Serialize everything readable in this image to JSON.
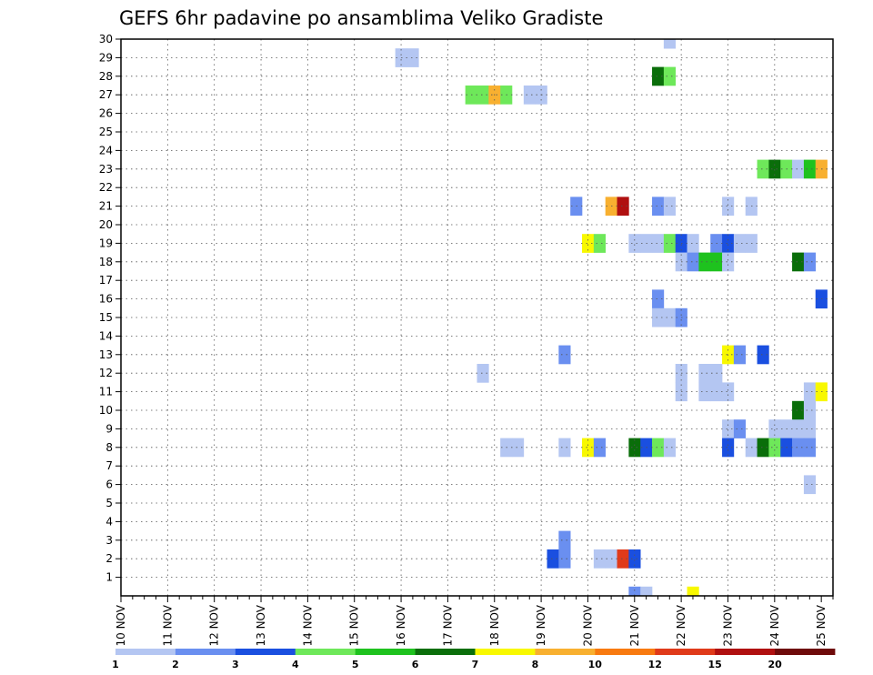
{
  "chart_data": {
    "type": "heatmap",
    "title": "GEFS 6hr padavine po ansamblima Veliko Gradiste",
    "x_tick_labels": [
      "10 NOV",
      "11 NOV",
      "12 NOV",
      "13 NOV",
      "14 NOV",
      "15 NOV",
      "16 NOV",
      "17 NOV",
      "18 NOV",
      "19 NOV",
      "20 NOV",
      "21 NOV",
      "22 NOV",
      "23 NOV",
      "24 NOV",
      "25 NOV"
    ],
    "xlim": [
      0,
      61
    ],
    "y_tick_labels": [
      "1",
      "2",
      "3",
      "4",
      "5",
      "6",
      "7",
      "8",
      "9",
      "10",
      "11",
      "12",
      "13",
      "14",
      "15",
      "16",
      "17",
      "18",
      "19",
      "20",
      "21",
      "22",
      "23",
      "24",
      "25",
      "26",
      "27",
      "28",
      "29",
      "30"
    ],
    "ylim": [
      0,
      30
    ],
    "grid": true,
    "legend": {
      "position": "bottom",
      "labels": [
        "1",
        "2",
        "3",
        "4",
        "5",
        "6",
        "7",
        "8",
        "10",
        "12",
        "15",
        "20"
      ],
      "colors": [
        "#b4c6f2",
        "#6a8ff0",
        "#1a4fe0",
        "#6ee85a",
        "#1ec21e",
        "#0a6e0a",
        "#f8f800",
        "#f8b030",
        "#f87a10",
        "#e03a1a",
        "#b01010",
        "#6e0a0a"
      ]
    },
    "cells": [
      {
        "x": 47,
        "y": 30,
        "level": 1
      },
      {
        "x": 24,
        "y": 29,
        "level": 1
      },
      {
        "x": 25,
        "y": 29,
        "level": 1
      },
      {
        "x": 46,
        "y": 28,
        "level": 6
      },
      {
        "x": 47,
        "y": 28,
        "level": 4
      },
      {
        "x": 30,
        "y": 27,
        "level": 4
      },
      {
        "x": 31,
        "y": 27,
        "level": 4
      },
      {
        "x": 32,
        "y": 27,
        "level": 8
      },
      {
        "x": 33,
        "y": 27,
        "level": 4
      },
      {
        "x": 35,
        "y": 27,
        "level": 1
      },
      {
        "x": 36,
        "y": 27,
        "level": 1
      },
      {
        "x": 55,
        "y": 23,
        "level": 4
      },
      {
        "x": 56,
        "y": 23,
        "level": 6
      },
      {
        "x": 57,
        "y": 23,
        "level": 4
      },
      {
        "x": 58,
        "y": 23,
        "level": 1
      },
      {
        "x": 59,
        "y": 23,
        "level": 5
      },
      {
        "x": 60,
        "y": 23,
        "level": 8
      },
      {
        "x": 39,
        "y": 21,
        "level": 2
      },
      {
        "x": 42,
        "y": 21,
        "level": 8
      },
      {
        "x": 43,
        "y": 21,
        "level": 15
      },
      {
        "x": 46,
        "y": 21,
        "level": 2
      },
      {
        "x": 47,
        "y": 21,
        "level": 1
      },
      {
        "x": 52,
        "y": 21,
        "level": 1
      },
      {
        "x": 54,
        "y": 21,
        "level": 1
      },
      {
        "x": 40,
        "y": 19,
        "level": 7
      },
      {
        "x": 41,
        "y": 19,
        "level": 4
      },
      {
        "x": 44,
        "y": 19,
        "level": 1
      },
      {
        "x": 45,
        "y": 19,
        "level": 1
      },
      {
        "x": 46,
        "y": 19,
        "level": 1
      },
      {
        "x": 47,
        "y": 19,
        "level": 4
      },
      {
        "x": 48,
        "y": 19,
        "level": 3
      },
      {
        "x": 49,
        "y": 19,
        "level": 1
      },
      {
        "x": 51,
        "y": 19,
        "level": 2
      },
      {
        "x": 52,
        "y": 19,
        "level": 3
      },
      {
        "x": 53,
        "y": 19,
        "level": 1
      },
      {
        "x": 54,
        "y": 19,
        "level": 1
      },
      {
        "x": 48,
        "y": 18,
        "level": 1
      },
      {
        "x": 49,
        "y": 18,
        "level": 2
      },
      {
        "x": 50,
        "y": 18,
        "level": 5
      },
      {
        "x": 51,
        "y": 18,
        "level": 5
      },
      {
        "x": 52,
        "y": 18,
        "level": 1
      },
      {
        "x": 58,
        "y": 18,
        "level": 6
      },
      {
        "x": 59,
        "y": 18,
        "level": 2
      },
      {
        "x": 46,
        "y": 16,
        "level": 2
      },
      {
        "x": 60,
        "y": 16,
        "level": 3
      },
      {
        "x": 46,
        "y": 15,
        "level": 1
      },
      {
        "x": 47,
        "y": 15,
        "level": 1
      },
      {
        "x": 48,
        "y": 15,
        "level": 2
      },
      {
        "x": 38,
        "y": 13,
        "level": 2
      },
      {
        "x": 52,
        "y": 13,
        "level": 7
      },
      {
        "x": 53,
        "y": 13,
        "level": 2
      },
      {
        "x": 55,
        "y": 13,
        "level": 3
      },
      {
        "x": 31,
        "y": 12,
        "level": 1
      },
      {
        "x": 48,
        "y": 12,
        "level": 1
      },
      {
        "x": 50,
        "y": 12,
        "level": 1
      },
      {
        "x": 51,
        "y": 12,
        "level": 1
      },
      {
        "x": 48,
        "y": 11,
        "level": 1
      },
      {
        "x": 50,
        "y": 11,
        "level": 1
      },
      {
        "x": 51,
        "y": 11,
        "level": 1
      },
      {
        "x": 52,
        "y": 11,
        "level": 1
      },
      {
        "x": 59,
        "y": 11,
        "level": 1
      },
      {
        "x": 60,
        "y": 11,
        "level": 7
      },
      {
        "x": 58,
        "y": 10,
        "level": 6
      },
      {
        "x": 59,
        "y": 10,
        "level": 1
      },
      {
        "x": 52,
        "y": 9,
        "level": 1
      },
      {
        "x": 53,
        "y": 9,
        "level": 2
      },
      {
        "x": 56,
        "y": 9,
        "level": 1
      },
      {
        "x": 57,
        "y": 9,
        "level": 1
      },
      {
        "x": 58,
        "y": 9,
        "level": 1
      },
      {
        "x": 59,
        "y": 9,
        "level": 1
      },
      {
        "x": 33,
        "y": 8,
        "level": 1
      },
      {
        "x": 34,
        "y": 8,
        "level": 1
      },
      {
        "x": 38,
        "y": 8,
        "level": 1
      },
      {
        "x": 40,
        "y": 8,
        "level": 7
      },
      {
        "x": 41,
        "y": 8,
        "level": 2
      },
      {
        "x": 44,
        "y": 8,
        "level": 6
      },
      {
        "x": 45,
        "y": 8,
        "level": 3
      },
      {
        "x": 46,
        "y": 8,
        "level": 4
      },
      {
        "x": 47,
        "y": 8,
        "level": 1
      },
      {
        "x": 52,
        "y": 8,
        "level": 3
      },
      {
        "x": 54,
        "y": 8,
        "level": 1
      },
      {
        "x": 55,
        "y": 8,
        "level": 6
      },
      {
        "x": 56,
        "y": 8,
        "level": 4
      },
      {
        "x": 57,
        "y": 8,
        "level": 3
      },
      {
        "x": 58,
        "y": 8,
        "level": 2
      },
      {
        "x": 59,
        "y": 8,
        "level": 2
      },
      {
        "x": 59,
        "y": 6,
        "level": 1
      },
      {
        "x": 38,
        "y": 3,
        "level": 2
      },
      {
        "x": 37,
        "y": 2,
        "level": 3
      },
      {
        "x": 38,
        "y": 2,
        "level": 2
      },
      {
        "x": 41,
        "y": 2,
        "level": 1
      },
      {
        "x": 42,
        "y": 2,
        "level": 1
      },
      {
        "x": 43,
        "y": 2,
        "level": 12
      },
      {
        "x": 44,
        "y": 2,
        "level": 3
      },
      {
        "x": 44,
        "y": 0,
        "level": 2
      },
      {
        "x": 45,
        "y": 0,
        "level": 1
      },
      {
        "x": 49,
        "y": 0,
        "level": 7
      }
    ]
  }
}
